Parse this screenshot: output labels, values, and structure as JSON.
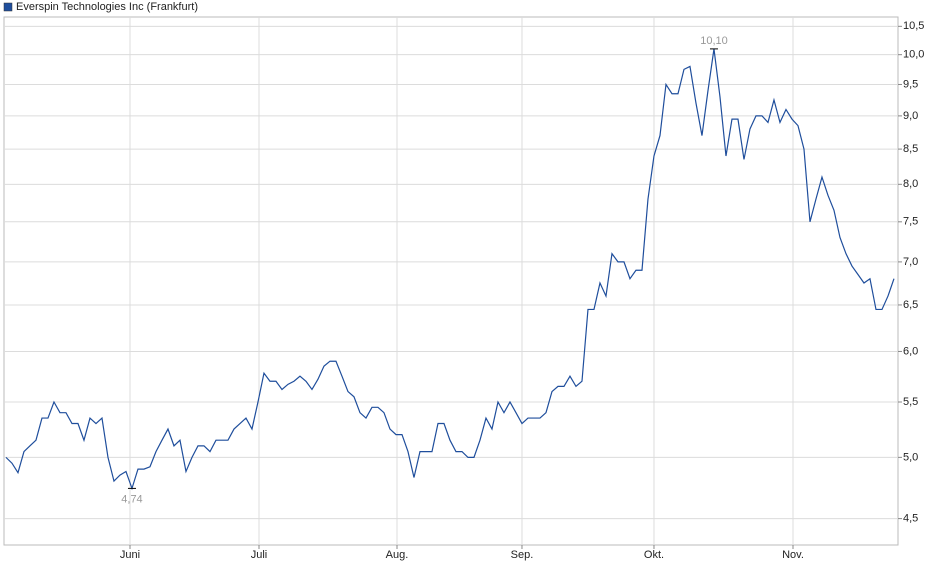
{
  "chart_data": {
    "type": "line",
    "log_y": true,
    "grid": true,
    "legend": "top-left",
    "x": [
      0,
      1,
      2,
      3,
      4,
      5,
      6,
      7,
      8,
      9,
      10,
      11,
      12,
      13,
      14,
      15,
      16,
      17,
      18,
      19,
      20,
      21,
      22,
      23,
      24,
      25,
      26,
      27,
      28,
      29,
      30,
      31,
      32,
      33,
      34,
      35,
      36,
      37,
      38,
      39,
      40,
      41,
      42,
      43,
      44,
      45,
      46,
      47,
      48,
      49,
      50,
      51,
      52,
      53,
      54,
      55,
      56,
      57,
      58,
      59,
      60,
      61,
      62,
      63,
      64,
      65,
      66,
      67,
      68,
      69,
      70,
      71,
      72,
      73,
      74,
      75,
      76,
      77,
      78,
      79,
      80,
      81,
      82,
      83,
      84,
      85,
      86,
      87,
      88,
      89,
      90,
      91,
      92,
      93,
      94,
      95,
      96,
      97,
      98,
      99,
      100,
      101,
      102,
      103,
      104,
      105,
      106,
      107,
      108,
      109,
      110,
      111,
      112,
      113,
      114,
      115,
      116,
      117,
      118,
      119,
      120,
      121,
      122,
      123,
      124,
      125,
      126,
      127,
      128,
      129,
      130,
      131,
      132,
      133,
      134,
      135,
      136,
      137,
      138,
      139,
      140,
      141,
      142,
      143,
      144,
      145,
      146,
      147,
      148
    ],
    "series": [
      {
        "name": "Everspin Technologies Inc (Frankfurt)",
        "color": "#1f4e9c",
        "values": [
          5.0,
          4.95,
          4.87,
          5.05,
          5.1,
          5.15,
          5.35,
          5.35,
          5.5,
          5.4,
          5.4,
          5.3,
          5.3,
          5.15,
          5.35,
          5.3,
          5.35,
          5.0,
          4.8,
          4.85,
          4.88,
          4.74,
          4.9,
          4.9,
          4.92,
          5.05,
          5.15,
          5.25,
          5.1,
          5.15,
          4.88,
          5.0,
          5.1,
          5.1,
          5.05,
          5.15,
          5.15,
          5.15,
          5.25,
          5.3,
          5.35,
          5.25,
          5.5,
          5.78,
          5.7,
          5.7,
          5.62,
          5.67,
          5.7,
          5.75,
          5.7,
          5.62,
          5.72,
          5.85,
          5.9,
          5.9,
          5.75,
          5.6,
          5.55,
          5.4,
          5.35,
          5.45,
          5.45,
          5.4,
          5.25,
          5.2,
          5.2,
          5.05,
          4.83,
          5.05,
          5.05,
          5.05,
          5.3,
          5.3,
          5.15,
          5.05,
          5.05,
          5.0,
          5.0,
          5.15,
          5.35,
          5.25,
          5.5,
          5.4,
          5.5,
          5.4,
          5.3,
          5.35,
          5.35,
          5.35,
          5.4,
          5.6,
          5.65,
          5.65,
          5.75,
          5.65,
          5.7,
          6.45,
          6.45,
          6.75,
          6.6,
          7.1,
          7.0,
          7.0,
          6.8,
          6.9,
          6.9,
          7.8,
          8.4,
          8.7,
          9.5,
          9.35,
          9.35,
          9.75,
          9.8,
          9.2,
          8.7,
          9.4,
          10.1,
          9.3,
          8.4,
          8.95,
          8.95,
          8.35,
          8.8,
          9.0,
          9.0,
          8.9,
          9.25,
          8.9,
          9.1,
          8.95,
          8.85,
          8.5,
          7.5,
          7.8,
          8.1,
          7.85,
          7.65,
          7.3,
          7.1,
          6.95,
          6.85,
          6.75,
          6.8,
          6.45,
          6.45,
          6.6,
          6.8
        ],
        "value_labels": [
          null,
          null,
          null,
          null,
          null,
          null,
          null,
          null,
          null,
          null,
          null,
          null,
          null,
          null,
          null,
          null,
          null,
          null,
          null,
          null,
          null,
          "4,74",
          null,
          null,
          null,
          null,
          null,
          null,
          null,
          null,
          null,
          null,
          null,
          null,
          null,
          null,
          null,
          null,
          null,
          null,
          null,
          null,
          null,
          null,
          null,
          null,
          null,
          null,
          null,
          null,
          null,
          null,
          null,
          null,
          null,
          null,
          null,
          null,
          null,
          null,
          null,
          null,
          null,
          null,
          null,
          null,
          null,
          null,
          null,
          null,
          null,
          null,
          null,
          null,
          null,
          null,
          null,
          null,
          null,
          null,
          null,
          null,
          null,
          null,
          null,
          null,
          null,
          null,
          null,
          null,
          null,
          null,
          null,
          null,
          null,
          null,
          null,
          null,
          null,
          null,
          null,
          null,
          null,
          null,
          null,
          null,
          null,
          null,
          null,
          null,
          null,
          null,
          null,
          null,
          null,
          null,
          null,
          null,
          "10,10",
          null,
          null,
          null,
          null,
          null,
          null,
          null,
          null,
          null,
          null,
          null,
          null,
          null,
          null,
          null,
          null,
          null,
          null,
          null,
          null,
          null,
          null,
          null,
          null,
          null,
          null,
          null,
          null,
          null,
          null
        ]
      }
    ],
    "xlim": [
      -0.33,
      148.67
    ],
    "xticks": [
      {
        "value": 20.67,
        "label": "Juni"
      },
      {
        "value": 42.17,
        "label": "Juli"
      },
      {
        "value": 65.17,
        "label": "Aug."
      },
      {
        "value": 86,
        "label": "Sep."
      },
      {
        "value": 108,
        "label": "Okt."
      },
      {
        "value": 131.17,
        "label": "Nov."
      }
    ],
    "ylim": [
      4.3,
      10.67
    ],
    "yticks": [
      {
        "value": 4.5,
        "label": "4,5"
      },
      {
        "value": 5.0,
        "label": "5,0"
      },
      {
        "value": 5.5,
        "label": "5,5"
      },
      {
        "value": 6.0,
        "label": "6,0"
      },
      {
        "value": 6.5,
        "label": "6,5"
      },
      {
        "value": 7.0,
        "label": "7,0"
      },
      {
        "value": 7.5,
        "label": "7,5"
      },
      {
        "value": 8.0,
        "label": "8,0"
      },
      {
        "value": 8.5,
        "label": "8,5"
      },
      {
        "value": 9.0,
        "label": "9,0"
      },
      {
        "value": 9.5,
        "label": "9,5"
      },
      {
        "value": 10.0,
        "label": "10,0"
      },
      {
        "value": 10.5,
        "label": "10,5"
      }
    ]
  }
}
